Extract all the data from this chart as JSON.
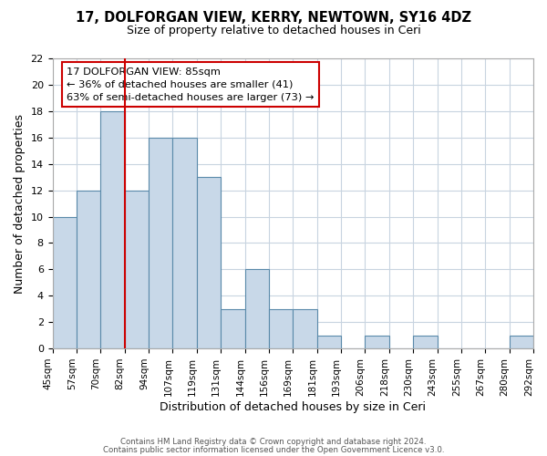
{
  "title": "17, DOLFORGAN VIEW, KERRY, NEWTOWN, SY16 4DZ",
  "subtitle": "Size of property relative to detached houses in Ceri",
  "xlabel": "Distribution of detached houses by size in Ceri",
  "ylabel": "Number of detached properties",
  "tick_labels": [
    "45sqm",
    "57sqm",
    "70sqm",
    "82sqm",
    "94sqm",
    "107sqm",
    "119sqm",
    "131sqm",
    "144sqm",
    "156sqm",
    "169sqm",
    "181sqm",
    "193sqm",
    "206sqm",
    "218sqm",
    "230sqm",
    "243sqm",
    "255sqm",
    "267sqm",
    "280sqm",
    "292sqm"
  ],
  "bar_heights": [
    10,
    12,
    18,
    12,
    16,
    16,
    13,
    3,
    6,
    3,
    3,
    1,
    0,
    1,
    0,
    1,
    0,
    0,
    0,
    1
  ],
  "bar_color": "#c8d8e8",
  "bar_edge_color": "#5a8aaa",
  "vline_x": 3,
  "vline_color": "#cc0000",
  "ylim": [
    0,
    22
  ],
  "yticks": [
    0,
    2,
    4,
    6,
    8,
    10,
    12,
    14,
    16,
    18,
    20,
    22
  ],
  "annotation_title": "17 DOLFORGAN VIEW: 85sqm",
  "annotation_line1": "← 36% of detached houses are smaller (41)",
  "annotation_line2": "63% of semi-detached houses are larger (73) →",
  "footer_line1": "Contains HM Land Registry data © Crown copyright and database right 2024.",
  "footer_line2": "Contains public sector information licensed under the Open Government Licence v3.0.",
  "background_color": "#ffffff",
  "grid_color": "#c8d4e0"
}
